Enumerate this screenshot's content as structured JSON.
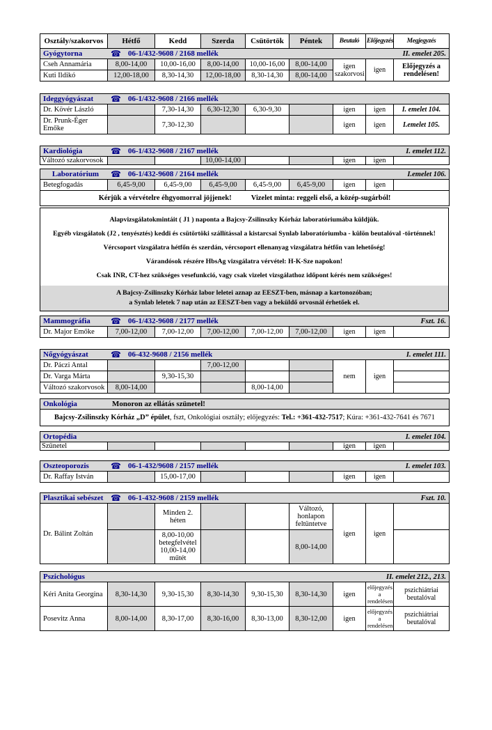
{
  "icons": {
    "phone": "☎"
  },
  "colors": {
    "accent_blue": "#00008B",
    "shade_gray": "#d9d9d9"
  },
  "columns": [
    "Osztály/szakorvos",
    "Hétfő",
    "Kedd",
    "Szerda",
    "Csütörtök",
    "Péntek",
    "Beutaló",
    "Előjegyzés",
    "Megjegyzés"
  ],
  "sections": [
    {
      "id": "gyogytorna",
      "title": "Gyógytorna",
      "phone": "06-1/432-9608 / 2168 mellék",
      "location": "II. emelet 205.",
      "show_columns": true,
      "rows": [
        {
          "name": {
            "text": "Cseh Annamária"
          },
          "days": [
            "8,00-14,00",
            "10,00-16,00",
            "8,00-14,00",
            "10,00-16,00",
            "8,00-14,00"
          ],
          "beutalo": {
            "text": "igen\nszakorvosi",
            "rowspan": 2
          },
          "elojegyzes": {
            "text": "igen",
            "rowspan": 2
          },
          "megjegyzes": {
            "text": "Előjegyzés a\nrendelésen!",
            "rowspan": 2,
            "style": "bold"
          }
        },
        {
          "name": {
            "text": "Kuti Ildikó"
          },
          "days": [
            "12,00-18,00",
            "8,30-14,30",
            "12,00-18,00",
            "8,30-14,30",
            "8,00-14,00"
          ]
        }
      ]
    },
    {
      "id": "ideggyogyaszat",
      "title": "Ideggyógyászat",
      "phone": "06-1/432-9608 / 2166 mellék",
      "location": "",
      "rows": [
        {
          "name": {
            "text": "Dr. Kövér László"
          },
          "days": [
            "",
            "7,30-14,30",
            "6,30-12,30",
            "6,30-9,30",
            ""
          ],
          "beutalo": {
            "text": "igen"
          },
          "elojegyzes": {
            "text": "igen"
          },
          "megjegyzes": {
            "text": "I. emelet 104.",
            "style": "bolditalic"
          }
        },
        {
          "name": {
            "text": "Dr. Prunk-Éger Emőke"
          },
          "days": [
            "",
            "7,30-12,30",
            "",
            "",
            ""
          ],
          "beutalo": {
            "text": "igen"
          },
          "elojegyzes": {
            "text": "igen"
          },
          "megjegyzes": {
            "text": "I.emelet 105.",
            "style": "bolditalic"
          }
        }
      ]
    },
    {
      "id": "kardiologia",
      "title": "Kardiológia",
      "phone": "06-1/432-9608 / 2167 mellék",
      "location": "I. emelet 112.",
      "compact": true,
      "rows": [
        {
          "name": {
            "text": "Változó szakorvosok"
          },
          "days": [
            "",
            "",
            "10,00-14,00",
            "",
            ""
          ],
          "beutalo": {
            "text": "igen"
          },
          "elojegyzes": {
            "text": "igen"
          },
          "megjegyzes": {
            "text": ""
          }
        }
      ]
    },
    {
      "id": "laboratorium",
      "title": "Laboratórium",
      "title_centered": true,
      "phone": "06-1/432-9608 / 2164 mellék",
      "location": "I.emelet 106.",
      "rows": [
        {
          "name": {
            "text": "Betegfogadás"
          },
          "days": [
            "6,45-9,00",
            "6,45-9,00",
            "6,45-9,00",
            "6,45-9,00",
            "6,45-9,00"
          ],
          "beutalo": {
            "text": "igen"
          },
          "elojegyzes": {
            "text": "igen"
          },
          "megjegyzes": {
            "text": ""
          }
        }
      ],
      "note_parts": [
        "Kérjük a vérvételre éhgyomorral jöjjenek!",
        "Vizelet minta: reggeli első, a közép-sugárból!"
      ]
    },
    {
      "id": "lab-megjegyzesek",
      "notes": {
        "lines": [
          "Alapvizsgálatokmintáit ( J1 ) naponta a Bajcsy-Zsilinszky Kórház laboratóriumába küldjük.",
          "Egyéb vizsgálatok (J2 , tenyésztés) keddi és csütörtöki szállítással a kistarcsai Synlab laboratóriumba - külön beutalóval -történnek!",
          "Vércsoport vizsgálatra hétfőn és szerdán, vércsoport ellenanyag vizsgálatra hétfőn van lehetőség!",
          "Várandósok részére HbsAg vizsgálatra vérvétel: H-K-Sze napokon!",
          "Csak INR, CT-hez szükséges vesefunkció, vagy csak vizelet vizsgálathoz időpont kérés nem szükséges!"
        ],
        "highlight": [
          "A Bajcsy-Zsilinszky Kórház labor leletei aznap az EESZT-ben, másnap a kartonozóban;",
          "a Synlab leletek 7 nap után az EESZT-ben vagy a beküldő orvosnál érhetőek el."
        ]
      }
    },
    {
      "id": "mammografia",
      "title": "Mammográfia",
      "phone": "06-1/432-9608 / 2177 mellék",
      "location": "Fszt. 16.",
      "rows": [
        {
          "name": {
            "text": "Dr. Major Emőke"
          },
          "days": [
            "7,00-12,00",
            "7,00-12,00",
            "7,00-12,00",
            "7,00-12,00",
            "7,00-12,00"
          ],
          "beutalo": {
            "text": "igen"
          },
          "elojegyzes": {
            "text": "igen"
          },
          "megjegyzes": {
            "text": ""
          }
        }
      ]
    },
    {
      "id": "nogyogyaszat",
      "title": "Nőgyógyászat",
      "phone": "06-432-9608 / 2156 mellék",
      "location": "I. emelet 111.",
      "rows": [
        {
          "name": {
            "text": "Dr. Páczi Antal"
          },
          "days": [
            "",
            "",
            "7,00-12,00",
            "",
            ""
          ],
          "beutalo": {
            "text": "nem",
            "rowspan": 3
          },
          "elojegyzes": {
            "text": "igen",
            "rowspan": 3
          },
          "megjegyzes": {
            "text": ""
          }
        },
        {
          "name": {
            "text": "Dr. Varga Márta"
          },
          "days": [
            "",
            "9,30-15,30",
            "",
            "",
            ""
          ],
          "megjegyzes": {
            "text": ""
          }
        },
        {
          "name": {
            "text": "Változó szakorvosok"
          },
          "days": [
            "8,00-14,00",
            "",
            "",
            "8,00-14,00",
            ""
          ],
          "megjegyzes": {
            "text": ""
          }
        }
      ]
    },
    {
      "id": "onkologia",
      "title": "Onkológia",
      "header_note": "Monoron az ellátás szünetel!",
      "body_segments": [
        {
          "text": "Bajcsy-Zsilinszky Kórház „D” épület",
          "bold": true
        },
        {
          "text": ", fszt, Onkológiai osztály; előjegyzés: "
        },
        {
          "text": "Tel.: +361-432-7517",
          "bold": true
        },
        {
          "text": "; Kúra: +361-432-7641 és 7671"
        }
      ]
    },
    {
      "id": "ortopedia",
      "title": "Ortopédia",
      "location": "I. emelet 104.",
      "compact": true,
      "rows": [
        {
          "name": {
            "text": "Szünetel"
          },
          "days": [
            "",
            "",
            "",
            "",
            ""
          ],
          "beutalo": {
            "text": "igen"
          },
          "elojegyzes": {
            "text": "igen"
          },
          "megjegyzes": {
            "text": ""
          }
        }
      ]
    },
    {
      "id": "oszteoporozis",
      "title": "Oszteoporozis",
      "phone": "06-1-432/9608 / 2157 mellék",
      "location": "I. emelet 103.",
      "rows": [
        {
          "name": {
            "text": "Dr. Raffay István"
          },
          "days": [
            "",
            "15,00-17,00",
            "",
            "",
            ""
          ],
          "beutalo": {
            "text": "igen"
          },
          "elojegyzes": {
            "text": "igen"
          },
          "megjegyzes": {
            "text": ""
          }
        }
      ]
    },
    {
      "id": "plasztikai-sebeszet",
      "title": "Plasztikai sebészet",
      "phone": "06-1-432-9608 / 2159 mellék",
      "location": "Fszt. 10.",
      "rows": [
        {
          "name": {
            "text": "Dr. Bálint Zoltán",
            "rowspan": 2
          },
          "days": [
            "",
            "Minden 2.\nhéten",
            "",
            "",
            "Változó,\nhonlapon\nfeltüntetve"
          ],
          "white_days": [
            4
          ],
          "beutalo": {
            "text": "igen",
            "rowspan": 2
          },
          "elojegyzes": {
            "text": "igen",
            "rowspan": 2
          },
          "megjegyzes": {
            "text": ""
          }
        },
        {
          "days": [
            "",
            "8,00-10,00\nbetegfelvétel\n10,00-14,00\nműtét",
            "",
            "",
            "8,00-14,00"
          ],
          "megjegyzes": {
            "text": ""
          }
        }
      ]
    },
    {
      "id": "pszichologus",
      "title": "Pszichológus",
      "location": "II. emelet 212., 213.",
      "rows": [
        {
          "name": {
            "text": "Kéri Anita Georgina"
          },
          "days": [
            "8,30-14,30",
            "9,30-15,30",
            "8,30-14,30",
            "9,30-15,30",
            "8,30-14,30"
          ],
          "beutalo": {
            "text": "igen"
          },
          "elojegyzes": {
            "text": "előjegyzés a\nrendelésen",
            "style": "small"
          },
          "megjegyzes": {
            "text": "pszichiátriai\nbeutalóval"
          }
        },
        {
          "name": {
            "text": "Posevitz Anna"
          },
          "days": [
            "8,00-14,00",
            "8,30-17,00",
            "8,30-16,00",
            "8,30-13,00",
            "8,30-12,00"
          ],
          "beutalo": {
            "text": "igen"
          },
          "elojegyzes": {
            "text": "előjegyzés a\nrendelésen",
            "style": "small"
          },
          "megjegyzes": {
            "text": "pszichiátriai\nbeutalóval"
          }
        }
      ]
    }
  ]
}
